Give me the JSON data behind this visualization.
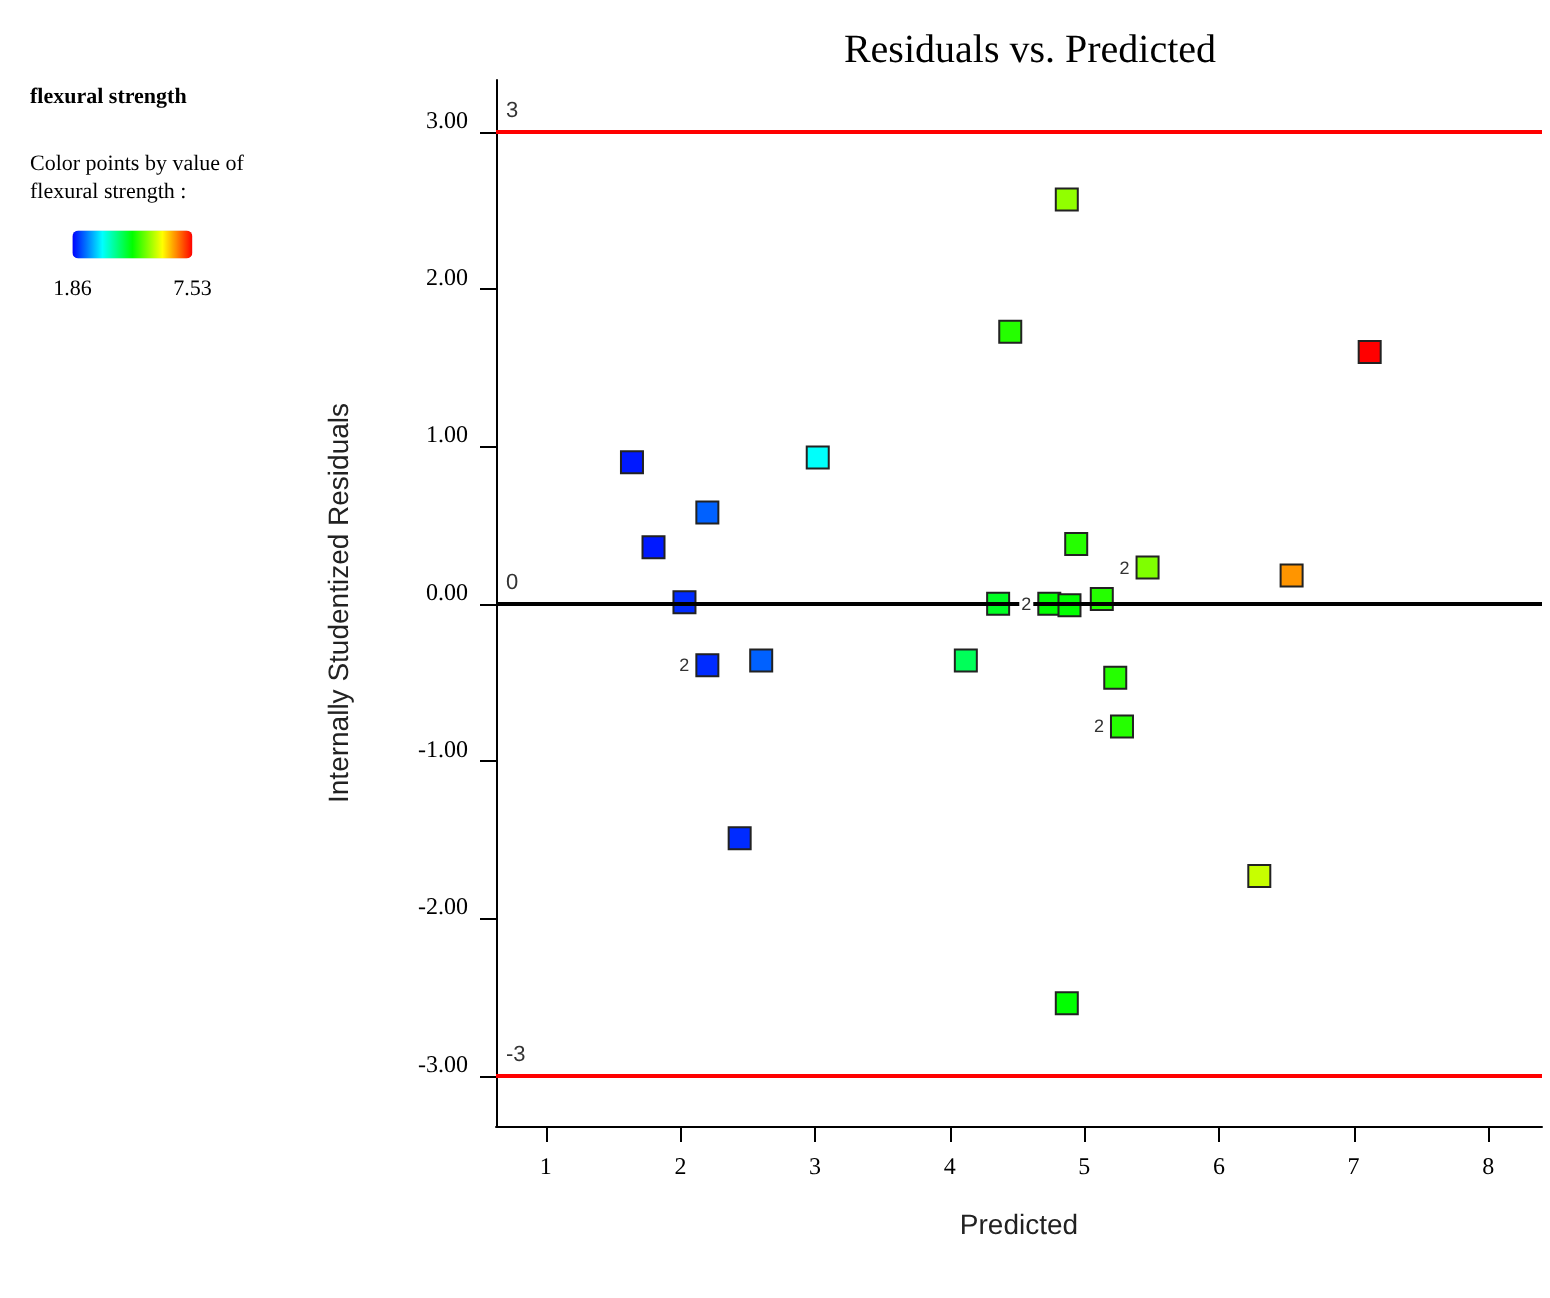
{
  "chart_data": {
    "type": "scatter",
    "title": "Residuals vs. Predicted",
    "subtitle": "flexural strength",
    "xlabel": "Predicted",
    "ylabel": "Internally Studentized Residuals",
    "clabel": "Color points by value of flexural strength :",
    "x": [
      1.64,
      1.8,
      2.2,
      2.03,
      2.2,
      2.6,
      2.44,
      3.02,
      4.45,
      4.87,
      7.12,
      4.94,
      5.47,
      6.54,
      4.36,
      4.74,
      4.89,
      5.13,
      4.12,
      5.23,
      5.28,
      6.3,
      4.87
    ],
    "values": [
      0.9,
      0.36,
      0.58,
      0.01,
      -0.39,
      -0.36,
      -1.49,
      0.93,
      1.73,
      2.57,
      1.6,
      0.38,
      0.23,
      0.18,
      0.0,
      0.0,
      -0.01,
      0.03,
      -0.36,
      -0.47,
      -0.78,
      -1.73,
      -2.54
    ],
    "cvalues": [
      2.0,
      2.0,
      2.4,
      2.1,
      2.1,
      2.4,
      2.1,
      3.3,
      4.9,
      5.5,
      7.53,
      4.9,
      5.4,
      6.7,
      4.5,
      4.7,
      4.7,
      4.9,
      4.2,
      4.9,
      4.9,
      5.8,
      4.7
    ],
    "clim": [
      1.86,
      7.53
    ],
    "cticks": [
      1.86,
      7.53
    ],
    "marker": "square",
    "grid": false,
    "xlim": [
      0.63,
      8.4
    ],
    "xticks": [
      1,
      2,
      3,
      4,
      5,
      6,
      7,
      8
    ],
    "ylim": [
      -3.32,
      3.33
    ],
    "yticks": [
      {
        "value": -3,
        "label": "-3.00"
      },
      {
        "value": -2,
        "label": "-2.00"
      },
      {
        "value": -1,
        "label": "-1.00"
      },
      {
        "value": 0,
        "label": "0.00"
      },
      {
        "value": 1,
        "label": "1.00"
      },
      {
        "value": 2,
        "label": "2.00"
      },
      {
        "value": 3,
        "label": "3.00"
      }
    ],
    "ref_lines": [
      {
        "axis": "y",
        "value": 3,
        "label": "3",
        "color": "#ff0000"
      },
      {
        "axis": "y",
        "value": 0,
        "label": "0",
        "color": "#000000"
      },
      {
        "axis": "y",
        "value": -3,
        "label": "-3",
        "color": "#ff0000"
      }
    ],
    "annotations": [
      {
        "text": "2",
        "x": 2.2,
        "y": -0.39
      },
      {
        "text": "2",
        "x": 4.74,
        "y": 0.0
      },
      {
        "text": "2",
        "x": 5.47,
        "y": 0.23
      },
      {
        "text": "2",
        "x": 5.28,
        "y": -0.78
      }
    ]
  }
}
